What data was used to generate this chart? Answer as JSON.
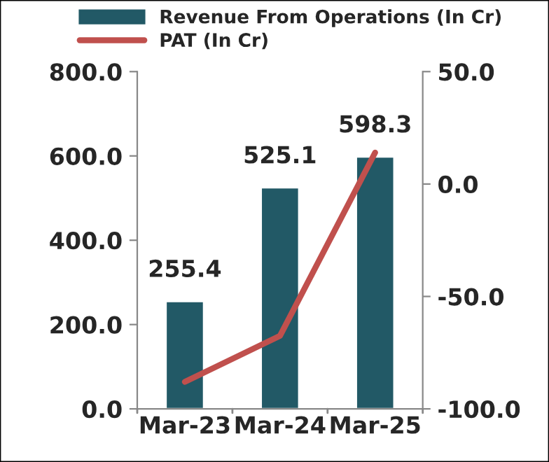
{
  "chart_data": {
    "type": "bar",
    "categories": [
      "Mar-23",
      "Mar-24",
      "Mar-25"
    ],
    "series": [
      {
        "name": "Revenue From Operations (In Cr)",
        "color": "#225966",
        "values": [
          255.4,
          525.1,
          598.3
        ],
        "value_labels": [
          "255.4",
          "525.1",
          "598.3"
        ]
      },
      {
        "name": "PAT (In Cr)",
        "type": "line",
        "axis": "y2",
        "color": "#c0504d",
        "values": [
          -88,
          -67.5,
          14
        ]
      }
    ],
    "ylim": [
      0,
      800
    ],
    "yticks": [
      {
        "value": 0,
        "label": "0.0"
      },
      {
        "value": 200,
        "label": "200.0"
      },
      {
        "value": 400,
        "label": "400.0"
      },
      {
        "value": 600,
        "label": "600.0"
      },
      {
        "value": 800,
        "label": "800.0"
      }
    ],
    "y2lim": [
      -100,
      50
    ],
    "y2ticks": [
      {
        "value": -100,
        "label": "-100.0"
      },
      {
        "value": -50,
        "label": "-50.0"
      },
      {
        "value": 0,
        "label": "0.0"
      },
      {
        "value": 50,
        "label": "50.0"
      }
    ],
    "grid": false,
    "legend": "top",
    "marker": "none",
    "line_style": "solid"
  }
}
